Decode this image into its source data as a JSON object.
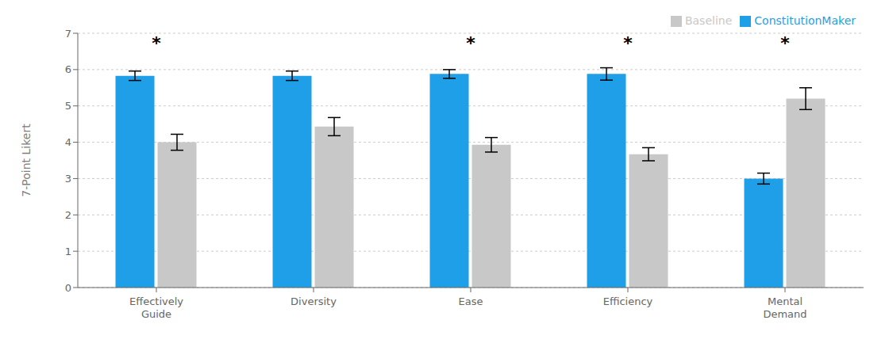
{
  "chart_data": {
    "type": "bar",
    "categories": [
      "Effectively\nGuide",
      "Diversity",
      "Ease",
      "Efficiency",
      "Mental\nDemand"
    ],
    "series": [
      {
        "name": "ConstitutionMaker",
        "color": "#1E9FE8",
        "values": [
          5.83,
          5.83,
          5.88,
          5.88,
          3.0
        ],
        "errors": [
          0.13,
          0.13,
          0.12,
          0.17,
          0.15
        ]
      },
      {
        "name": "Baseline",
        "color": "#C8C8C8",
        "values": [
          4.0,
          4.43,
          3.93,
          3.67,
          5.2
        ],
        "errors": [
          0.22,
          0.25,
          0.2,
          0.18,
          0.3
        ]
      }
    ],
    "ylabel": "7-Point Likert",
    "ylim": [
      0,
      7
    ],
    "yticks": [
      0,
      1,
      2,
      3,
      4,
      5,
      6,
      7
    ],
    "grid": true,
    "legend": "upper right",
    "annotations": [
      {
        "category": "Effectively\nGuide",
        "y": 6.72,
        "text": "*"
      },
      {
        "category": "Ease",
        "y": 6.72,
        "text": "*"
      },
      {
        "category": "Efficiency",
        "y": 6.72,
        "text": "*"
      },
      {
        "category": "Mental\nDemand",
        "y": 6.72,
        "text": "*"
      }
    ]
  }
}
